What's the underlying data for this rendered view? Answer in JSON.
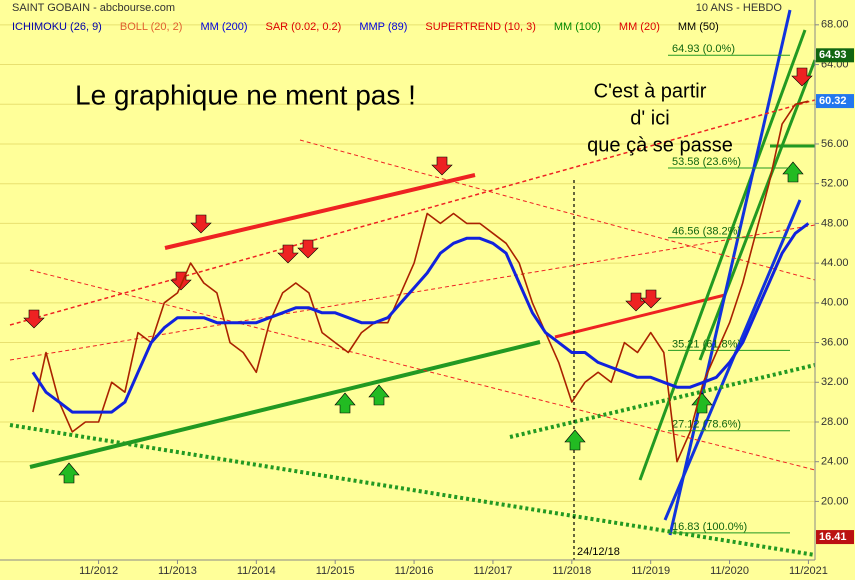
{
  "chart_data": {
    "type": "line",
    "title": "SAINT GOBAIN - abcbourse.com",
    "subtitle": "10 ANS - HEBDO",
    "indicators": [
      {
        "name": "ICHIMOKU (26, 9)",
        "color": "#0000aa"
      },
      {
        "name": "BOLL (20, 2)",
        "color": "#e06030"
      },
      {
        "name": "MM (200)",
        "color": "#0000dd"
      },
      {
        "name": "SAR (0.02, 0.2)",
        "color": "#dd0000"
      },
      {
        "name": "MMP (89)",
        "color": "#0000dd"
      },
      {
        "name": "SUPERTREND (10, 3)",
        "color": "#dd0000"
      },
      {
        "name": "MM (100)",
        "color": "#008800"
      },
      {
        "name": "MM (20)",
        "color": "#dd0000"
      },
      {
        "name": "MM (50)",
        "color": "#000000"
      }
    ],
    "annotations": [
      "Le graphique ne ment pas !",
      "C'est à partir",
      "d' ici",
      "que çà se passe",
      "24/12/18"
    ],
    "x": [
      "01/2012",
      "03/2012",
      "05/2012",
      "07/2012",
      "09/2012",
      "11/2012",
      "01/2013",
      "03/2013",
      "05/2013",
      "07/2013",
      "09/2013",
      "11/2013",
      "01/2014",
      "03/2014",
      "05/2014",
      "07/2014",
      "09/2014",
      "11/2014",
      "01/2015",
      "03/2015",
      "05/2015",
      "07/2015",
      "09/2015",
      "11/2015",
      "01/2016",
      "03/2016",
      "05/2016",
      "07/2016",
      "09/2016",
      "11/2016",
      "01/2017",
      "03/2017",
      "05/2017",
      "07/2017",
      "09/2017",
      "11/2017",
      "01/2018",
      "03/2018",
      "05/2018",
      "07/2018",
      "09/2018",
      "11/2018",
      "01/2019",
      "03/2019",
      "05/2019",
      "07/2019",
      "09/2019",
      "11/2019",
      "01/2020",
      "03/2020",
      "05/2020",
      "07/2020",
      "09/2020",
      "11/2020",
      "01/2021",
      "03/2021",
      "05/2021",
      "07/2021",
      "09/2021",
      "11/2021"
    ],
    "series": [
      {
        "color": "#aa2200",
        "values": [
          29,
          35,
          30,
          27,
          28,
          28,
          32,
          31,
          37,
          36,
          40,
          41,
          44,
          42,
          41,
          36,
          35,
          33,
          38,
          41,
          42,
          41,
          37,
          36,
          35,
          37,
          38,
          38,
          41,
          44,
          49,
          48,
          49,
          48,
          48,
          47,
          46,
          44,
          40,
          37,
          34,
          30,
          32,
          33,
          32,
          36,
          35,
          37,
          35,
          24,
          27,
          32,
          35,
          38,
          42,
          47,
          52,
          58,
          60,
          60.32
        ]
      },
      {
        "color": "#1122dd",
        "values": [
          33,
          31,
          30,
          29,
          29,
          29,
          29,
          30,
          33,
          36,
          37.5,
          38.5,
          38.5,
          38.5,
          38,
          38,
          38,
          38,
          38.5,
          39,
          39.5,
          39.5,
          39,
          39,
          38.5,
          38,
          38,
          38.5,
          40,
          41.5,
          43,
          45,
          46,
          46.5,
          46.5,
          46,
          45,
          42,
          39,
          37,
          36,
          35,
          35,
          34,
          33.5,
          33,
          32.5,
          32.5,
          32,
          31.5,
          31.5,
          32,
          32.5,
          34,
          36,
          39,
          42,
          45,
          47,
          48
        ]
      }
    ],
    "xlim": [
      "08/2011",
      "12/2021"
    ],
    "xticks": [
      "11/2012",
      "11/2013",
      "11/2014",
      "11/2015",
      "11/2016",
      "11/2017",
      "11/2018",
      "11/2019",
      "11/2020",
      "11/2021"
    ],
    "ylim": [
      14.1,
      70.5
    ],
    "yticks": [
      {
        "value": 20,
        "label": "20.00"
      },
      {
        "value": 24,
        "label": "24.00"
      },
      {
        "value": 28,
        "label": "28.00"
      },
      {
        "value": 32,
        "label": "32.00"
      },
      {
        "value": 36,
        "label": "36.00"
      },
      {
        "value": 40,
        "label": "40.00"
      },
      {
        "value": 44,
        "label": "44.00"
      },
      {
        "value": 48,
        "label": "48.00"
      },
      {
        "value": 52,
        "label": "52.00"
      },
      {
        "value": 56,
        "label": "56.00"
      },
      {
        "value": 60,
        "label": "60.00"
      },
      {
        "value": 64,
        "label": "64.00"
      },
      {
        "value": 68,
        "label": "68.00"
      }
    ],
    "fib_levels": [
      {
        "value": 64.93,
        "label": "64.93  (0.0%)"
      },
      {
        "value": 53.58,
        "label": "53.58  (23.6%)"
      },
      {
        "value": 46.56,
        "label": "46.56  (38.2%)"
      },
      {
        "value": 35.21,
        "label": "35.21  (61.8%)"
      },
      {
        "value": 27.12,
        "label": "27.12  (78.6%)"
      },
      {
        "value": 16.83,
        "label": "16.83  (100.0%)"
      }
    ],
    "price_tags": [
      64.93,
      60.32,
      16.41
    ],
    "price_tag_colors": [
      "#116611",
      "#2277ee",
      "#bb1111"
    ],
    "grid": true
  }
}
